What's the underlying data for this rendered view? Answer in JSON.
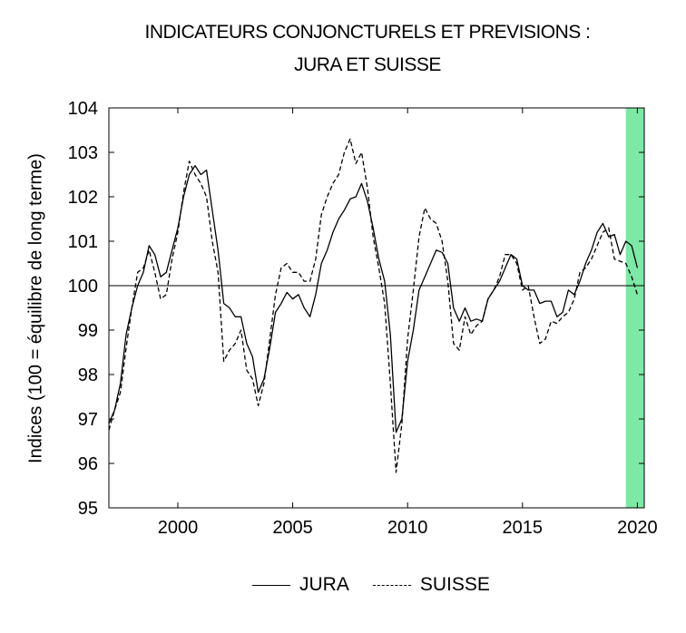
{
  "chart_data": {
    "type": "line",
    "title_line1": "INDICATEURS CONJONCTURELS ET PREVISIONS :",
    "title_line2": "JURA ET SUISSE",
    "ylabel": "Indices (100 = équilibre de long terme)",
    "xlabel": "",
    "xlim": [
      1997.0,
      2020.3
    ],
    "ylim": [
      95,
      104
    ],
    "x_ticks": [
      2000,
      2005,
      2010,
      2015,
      2020
    ],
    "y_ticks": [
      95,
      96,
      97,
      98,
      99,
      100,
      101,
      102,
      103,
      104
    ],
    "reference_line": 100,
    "forecast_band": {
      "from": 2019.5,
      "to": 2020.3,
      "color": "#7ee8a6"
    },
    "grid": false,
    "legend_position": "bottom",
    "series": [
      {
        "name": "JURA",
        "style": "solid",
        "points": [
          [
            1997.0,
            96.9
          ],
          [
            1997.25,
            97.2
          ],
          [
            1997.5,
            97.8
          ],
          [
            1997.75,
            98.9
          ],
          [
            1998.0,
            99.5
          ],
          [
            1998.25,
            100.0
          ],
          [
            1998.5,
            100.3
          ],
          [
            1998.75,
            100.9
          ],
          [
            1999.0,
            100.7
          ],
          [
            1999.25,
            100.2
          ],
          [
            1999.5,
            100.3
          ],
          [
            1999.75,
            100.8
          ],
          [
            2000.0,
            101.3
          ],
          [
            2000.25,
            102.0
          ],
          [
            2000.5,
            102.5
          ],
          [
            2000.75,
            102.7
          ],
          [
            2001.0,
            102.5
          ],
          [
            2001.25,
            102.6
          ],
          [
            2001.5,
            101.7
          ],
          [
            2001.75,
            100.8
          ],
          [
            2002.0,
            99.6
          ],
          [
            2002.25,
            99.5
          ],
          [
            2002.5,
            99.3
          ],
          [
            2002.75,
            99.3
          ],
          [
            2003.0,
            98.7
          ],
          [
            2003.25,
            98.4
          ],
          [
            2003.5,
            97.6
          ],
          [
            2003.75,
            97.9
          ],
          [
            2004.0,
            98.6
          ],
          [
            2004.25,
            99.4
          ],
          [
            2004.5,
            99.6
          ],
          [
            2004.75,
            99.85
          ],
          [
            2005.0,
            99.7
          ],
          [
            2005.25,
            99.8
          ],
          [
            2005.5,
            99.5
          ],
          [
            2005.75,
            99.3
          ],
          [
            2006.0,
            99.8
          ],
          [
            2006.25,
            100.5
          ],
          [
            2006.5,
            100.8
          ],
          [
            2006.75,
            101.2
          ],
          [
            2007.0,
            101.5
          ],
          [
            2007.25,
            101.7
          ],
          [
            2007.5,
            101.95
          ],
          [
            2007.75,
            102.0
          ],
          [
            2008.0,
            102.3
          ],
          [
            2008.25,
            101.9
          ],
          [
            2008.5,
            101.3
          ],
          [
            2008.75,
            100.6
          ],
          [
            2009.0,
            100.1
          ],
          [
            2009.25,
            98.9
          ],
          [
            2009.5,
            96.7
          ],
          [
            2009.75,
            97.0
          ],
          [
            2010.0,
            98.3
          ],
          [
            2010.25,
            99.0
          ],
          [
            2010.5,
            99.9
          ],
          [
            2010.75,
            100.2
          ],
          [
            2011.0,
            100.5
          ],
          [
            2011.25,
            100.8
          ],
          [
            2011.5,
            100.75
          ],
          [
            2011.75,
            100.5
          ],
          [
            2012.0,
            99.5
          ],
          [
            2012.25,
            99.2
          ],
          [
            2012.5,
            99.5
          ],
          [
            2012.75,
            99.2
          ],
          [
            2013.0,
            99.25
          ],
          [
            2013.25,
            99.2
          ],
          [
            2013.5,
            99.7
          ],
          [
            2013.75,
            99.9
          ],
          [
            2014.0,
            100.1
          ],
          [
            2014.25,
            100.4
          ],
          [
            2014.5,
            100.7
          ],
          [
            2014.75,
            100.6
          ],
          [
            2015.0,
            100.0
          ],
          [
            2015.25,
            99.9
          ],
          [
            2015.5,
            99.9
          ],
          [
            2015.75,
            99.6
          ],
          [
            2016.0,
            99.65
          ],
          [
            2016.25,
            99.65
          ],
          [
            2016.5,
            99.3
          ],
          [
            2016.75,
            99.4
          ],
          [
            2017.0,
            99.9
          ],
          [
            2017.25,
            99.8
          ],
          [
            2017.5,
            100.1
          ],
          [
            2017.75,
            100.5
          ],
          [
            2018.0,
            100.8
          ],
          [
            2018.25,
            101.2
          ],
          [
            2018.5,
            101.4
          ],
          [
            2018.75,
            101.1
          ],
          [
            2019.0,
            101.15
          ],
          [
            2019.25,
            100.7
          ],
          [
            2019.5,
            101.0
          ],
          [
            2019.75,
            100.9
          ],
          [
            2020.0,
            100.4
          ]
        ]
      },
      {
        "name": "SUISSE",
        "style": "dashed",
        "points": [
          [
            1997.0,
            96.75
          ],
          [
            1997.25,
            97.2
          ],
          [
            1997.5,
            97.6
          ],
          [
            1997.75,
            98.6
          ],
          [
            1998.0,
            99.5
          ],
          [
            1998.25,
            100.3
          ],
          [
            1998.5,
            100.4
          ],
          [
            1998.75,
            100.8
          ],
          [
            1999.0,
            100.3
          ],
          [
            1999.25,
            99.7
          ],
          [
            1999.5,
            99.8
          ],
          [
            1999.75,
            100.6
          ],
          [
            2000.0,
            101.2
          ],
          [
            2000.25,
            102.1
          ],
          [
            2000.5,
            102.8
          ],
          [
            2000.75,
            102.5
          ],
          [
            2001.0,
            102.3
          ],
          [
            2001.25,
            102.0
          ],
          [
            2001.5,
            101.0
          ],
          [
            2001.75,
            100.3
          ],
          [
            2002.0,
            98.3
          ],
          [
            2002.25,
            98.55
          ],
          [
            2002.5,
            98.7
          ],
          [
            2002.75,
            99.0
          ],
          [
            2003.0,
            98.1
          ],
          [
            2003.25,
            97.9
          ],
          [
            2003.5,
            97.3
          ],
          [
            2003.75,
            97.8
          ],
          [
            2004.0,
            98.8
          ],
          [
            2004.25,
            99.8
          ],
          [
            2004.5,
            100.4
          ],
          [
            2004.75,
            100.5
          ],
          [
            2005.0,
            100.3
          ],
          [
            2005.25,
            100.3
          ],
          [
            2005.5,
            100.1
          ],
          [
            2005.75,
            100.1
          ],
          [
            2006.0,
            100.6
          ],
          [
            2006.25,
            101.6
          ],
          [
            2006.5,
            102.0
          ],
          [
            2006.75,
            102.3
          ],
          [
            2007.0,
            102.5
          ],
          [
            2007.25,
            103.0
          ],
          [
            2007.5,
            103.3
          ],
          [
            2007.75,
            102.75
          ],
          [
            2008.0,
            103.0
          ],
          [
            2008.25,
            102.2
          ],
          [
            2008.5,
            101.1
          ],
          [
            2008.75,
            100.4
          ],
          [
            2009.0,
            99.6
          ],
          [
            2009.25,
            97.8
          ],
          [
            2009.5,
            95.8
          ],
          [
            2009.75,
            96.9
          ],
          [
            2010.0,
            98.8
          ],
          [
            2010.25,
            99.9
          ],
          [
            2010.5,
            101.1
          ],
          [
            2010.75,
            101.75
          ],
          [
            2011.0,
            101.5
          ],
          [
            2011.25,
            101.4
          ],
          [
            2011.5,
            101.0
          ],
          [
            2011.75,
            100.1
          ],
          [
            2012.0,
            98.7
          ],
          [
            2012.25,
            98.55
          ],
          [
            2012.5,
            99.3
          ],
          [
            2012.75,
            98.9
          ],
          [
            2013.0,
            99.1
          ],
          [
            2013.25,
            99.2
          ],
          [
            2013.5,
            99.7
          ],
          [
            2013.75,
            99.9
          ],
          [
            2014.0,
            100.2
          ],
          [
            2014.25,
            100.7
          ],
          [
            2014.5,
            100.7
          ],
          [
            2014.75,
            100.5
          ],
          [
            2015.0,
            99.9
          ],
          [
            2015.25,
            100.0
          ],
          [
            2015.5,
            99.3
          ],
          [
            2015.75,
            98.7
          ],
          [
            2016.0,
            98.8
          ],
          [
            2016.25,
            99.2
          ],
          [
            2016.5,
            99.15
          ],
          [
            2016.75,
            99.3
          ],
          [
            2017.0,
            99.4
          ],
          [
            2017.25,
            99.7
          ],
          [
            2017.5,
            100.3
          ],
          [
            2017.75,
            100.4
          ],
          [
            2018.0,
            100.6
          ],
          [
            2018.25,
            100.9
          ],
          [
            2018.5,
            101.2
          ],
          [
            2018.75,
            101.3
          ],
          [
            2019.0,
            100.6
          ],
          [
            2019.25,
            100.55
          ],
          [
            2019.5,
            100.5
          ],
          [
            2019.75,
            100.2
          ],
          [
            2020.0,
            99.8
          ]
        ]
      }
    ]
  }
}
